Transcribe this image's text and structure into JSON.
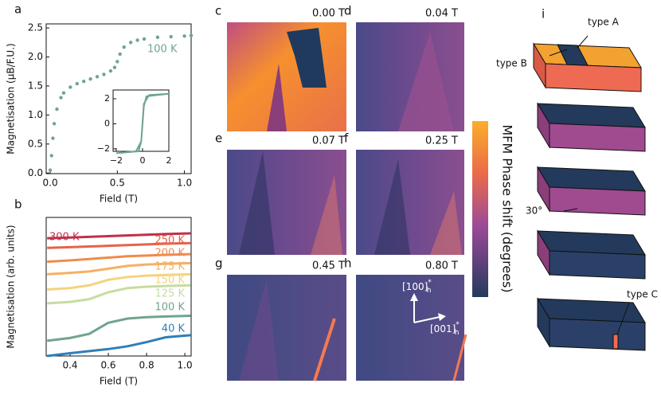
{
  "chart_data": [
    {
      "type": "scatter",
      "panel": "a",
      "xlabel": "Field (T)",
      "ylabel": "Magnetisation (μB/F.U.)",
      "xlim": [
        -0.03,
        1.05
      ],
      "ylim": [
        -0.01,
        2.57
      ],
      "xticks": [
        {
          "value": 0,
          "label": "0.0"
        },
        0.5,
        {
          "value": 1,
          "label": "1.0"
        }
      ],
      "yticks": [
        {
          "value": 0,
          "label": "0.0"
        },
        0.5,
        {
          "value": 1,
          "label": "1.0"
        },
        1.5,
        {
          "value": 2,
          "label": "2.0"
        },
        2.5
      ],
      "x": [
        0,
        0.01,
        0.02,
        0.03,
        0.05,
        0.08,
        0.1,
        0.15,
        0.2,
        0.25,
        0.3,
        0.35,
        0.4,
        0.45,
        0.48,
        0.5,
        0.52,
        0.55,
        0.6,
        0.65,
        0.7,
        0.8,
        0.9,
        1.0,
        1.05
      ],
      "series": [
        {
          "name": "100 K",
          "color": "#6fa58d",
          "values": [
            0.05,
            0.3,
            0.6,
            0.85,
            1.1,
            1.3,
            1.38,
            1.48,
            1.54,
            1.58,
            1.62,
            1.66,
            1.7,
            1.76,
            1.82,
            1.92,
            2.05,
            2.17,
            2.25,
            2.29,
            2.31,
            2.34,
            2.35,
            2.36,
            2.37
          ]
        }
      ]
    },
    {
      "type": "line",
      "xlim": [
        -2.24,
        2
      ],
      "ylim": [
        -2.2,
        2.7
      ],
      "xticks": [
        {
          "value": -2,
          "label": "−2"
        },
        0,
        2
      ],
      "yticks": [
        {
          "value": -2,
          "label": "−2"
        },
        0,
        2
      ],
      "x": [
        -2,
        -0.5,
        -0.2,
        -0.1,
        0.1,
        0.3,
        2,
        0.5,
        0.1,
        -0.1,
        -0.3,
        -2
      ],
      "series": [
        {
          "color": "#6fa58d",
          "values": [
            -2.35,
            -2.2,
            -1.6,
            -1.4,
            1.4,
            2.2,
            2.4,
            2.3,
            1.6,
            -1.4,
            -2.2,
            -2.35
          ]
        }
      ]
    },
    {
      "type": "line",
      "panel": "b",
      "xlabel": "Field (T)",
      "ylabel": "Magnetisation (arb. units)",
      "xlim": [
        0.275,
        1.033
      ],
      "ylim": [
        0,
        10
      ],
      "xticks": [
        0.4,
        0.6,
        0.8,
        {
          "value": 1,
          "label": "1.0"
        }
      ],
      "x": [
        0.28,
        0.4,
        0.5,
        0.6,
        0.7,
        0.8,
        0.9,
        1.03
      ],
      "series": [
        {
          "name": "300 K",
          "color": "#c0304a",
          "values": [
            8.5,
            8.55,
            8.6,
            8.65,
            8.7,
            8.75,
            8.8,
            8.85
          ]
        },
        {
          "name": "250 K",
          "color": "#e8624a",
          "values": [
            7.8,
            7.85,
            7.9,
            7.95,
            8.0,
            8.05,
            8.1,
            8.15
          ]
        },
        {
          "name": "200 K",
          "color": "#f08a4b",
          "values": [
            6.8,
            6.9,
            7.0,
            7.1,
            7.2,
            7.25,
            7.3,
            7.35
          ]
        },
        {
          "name": "175 K",
          "color": "#f6b062",
          "values": [
            5.9,
            6.0,
            6.1,
            6.3,
            6.5,
            6.6,
            6.65,
            6.7
          ]
        },
        {
          "name": "150 K",
          "color": "#f5d37e",
          "values": [
            4.8,
            4.9,
            5.1,
            5.5,
            5.7,
            5.8,
            5.85,
            5.9
          ]
        },
        {
          "name": "125 K",
          "color": "#c7dca0",
          "values": [
            3.8,
            3.9,
            4.1,
            4.6,
            4.9,
            5.0,
            5.05,
            5.1
          ]
        },
        {
          "name": "100 K",
          "color": "#6fa58d",
          "values": [
            1.1,
            1.3,
            1.6,
            2.4,
            2.7,
            2.8,
            2.85,
            2.9
          ]
        },
        {
          "name": "40 K",
          "color": "#2e7fb8",
          "values": [
            0,
            0.2,
            0.35,
            0.5,
            0.7,
            1.0,
            1.35,
            1.5
          ]
        }
      ]
    }
  ],
  "mfm_panels": [
    {
      "letter": "c",
      "field": "0.00 T"
    },
    {
      "letter": "d",
      "field": "0.04 T"
    },
    {
      "letter": "e",
      "field": "0.07 T"
    },
    {
      "letter": "f",
      "field": "0.25 T"
    },
    {
      "letter": "g",
      "field": "0.45 T"
    },
    {
      "letter": "h",
      "field": "0.80 T"
    }
  ],
  "directions": [
    {
      "text": "[100]",
      "sup": "*",
      "sub": "h"
    },
    {
      "text": "[001]",
      "sup": "*",
      "sub": "h"
    }
  ],
  "colorbar": {
    "label": "MFM Phase shift (degrees)"
  },
  "diagram": {
    "letter": "i",
    "labels": [
      "type A",
      "type B",
      "30°",
      "type C"
    ]
  }
}
